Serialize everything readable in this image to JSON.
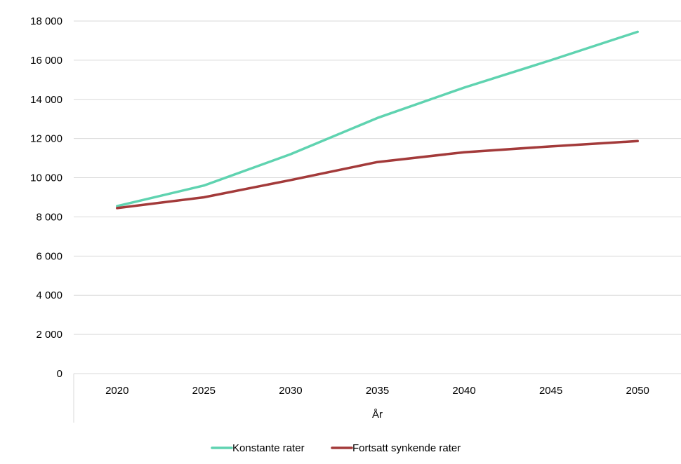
{
  "chart_data": {
    "type": "line",
    "title": "",
    "xlabel": "År",
    "ylabel": "",
    "categories": [
      "2020",
      "2025",
      "2030",
      "2035",
      "2040",
      "2045",
      "2050"
    ],
    "ylim": [
      0,
      18000
    ],
    "yticks": [
      0,
      2000,
      4000,
      6000,
      8000,
      10000,
      12000,
      14000,
      16000,
      18000
    ],
    "ytick_labels": [
      "0",
      "2 000",
      "4 000",
      "6 000",
      "8 000",
      "10 000",
      "12 000",
      "14 000",
      "16 000",
      "18 000"
    ],
    "grid": true,
    "legend_position": "bottom",
    "series": [
      {
        "name": "Konstante rater",
        "color": "#5fd3b0",
        "values": [
          8550,
          9600,
          11200,
          13050,
          14600,
          16000,
          17450
        ]
      },
      {
        "name": "Fortsatt synkende rater",
        "color": "#a33a3a",
        "values": [
          8450,
          9000,
          9880,
          10800,
          11300,
          11600,
          11870
        ]
      }
    ]
  }
}
